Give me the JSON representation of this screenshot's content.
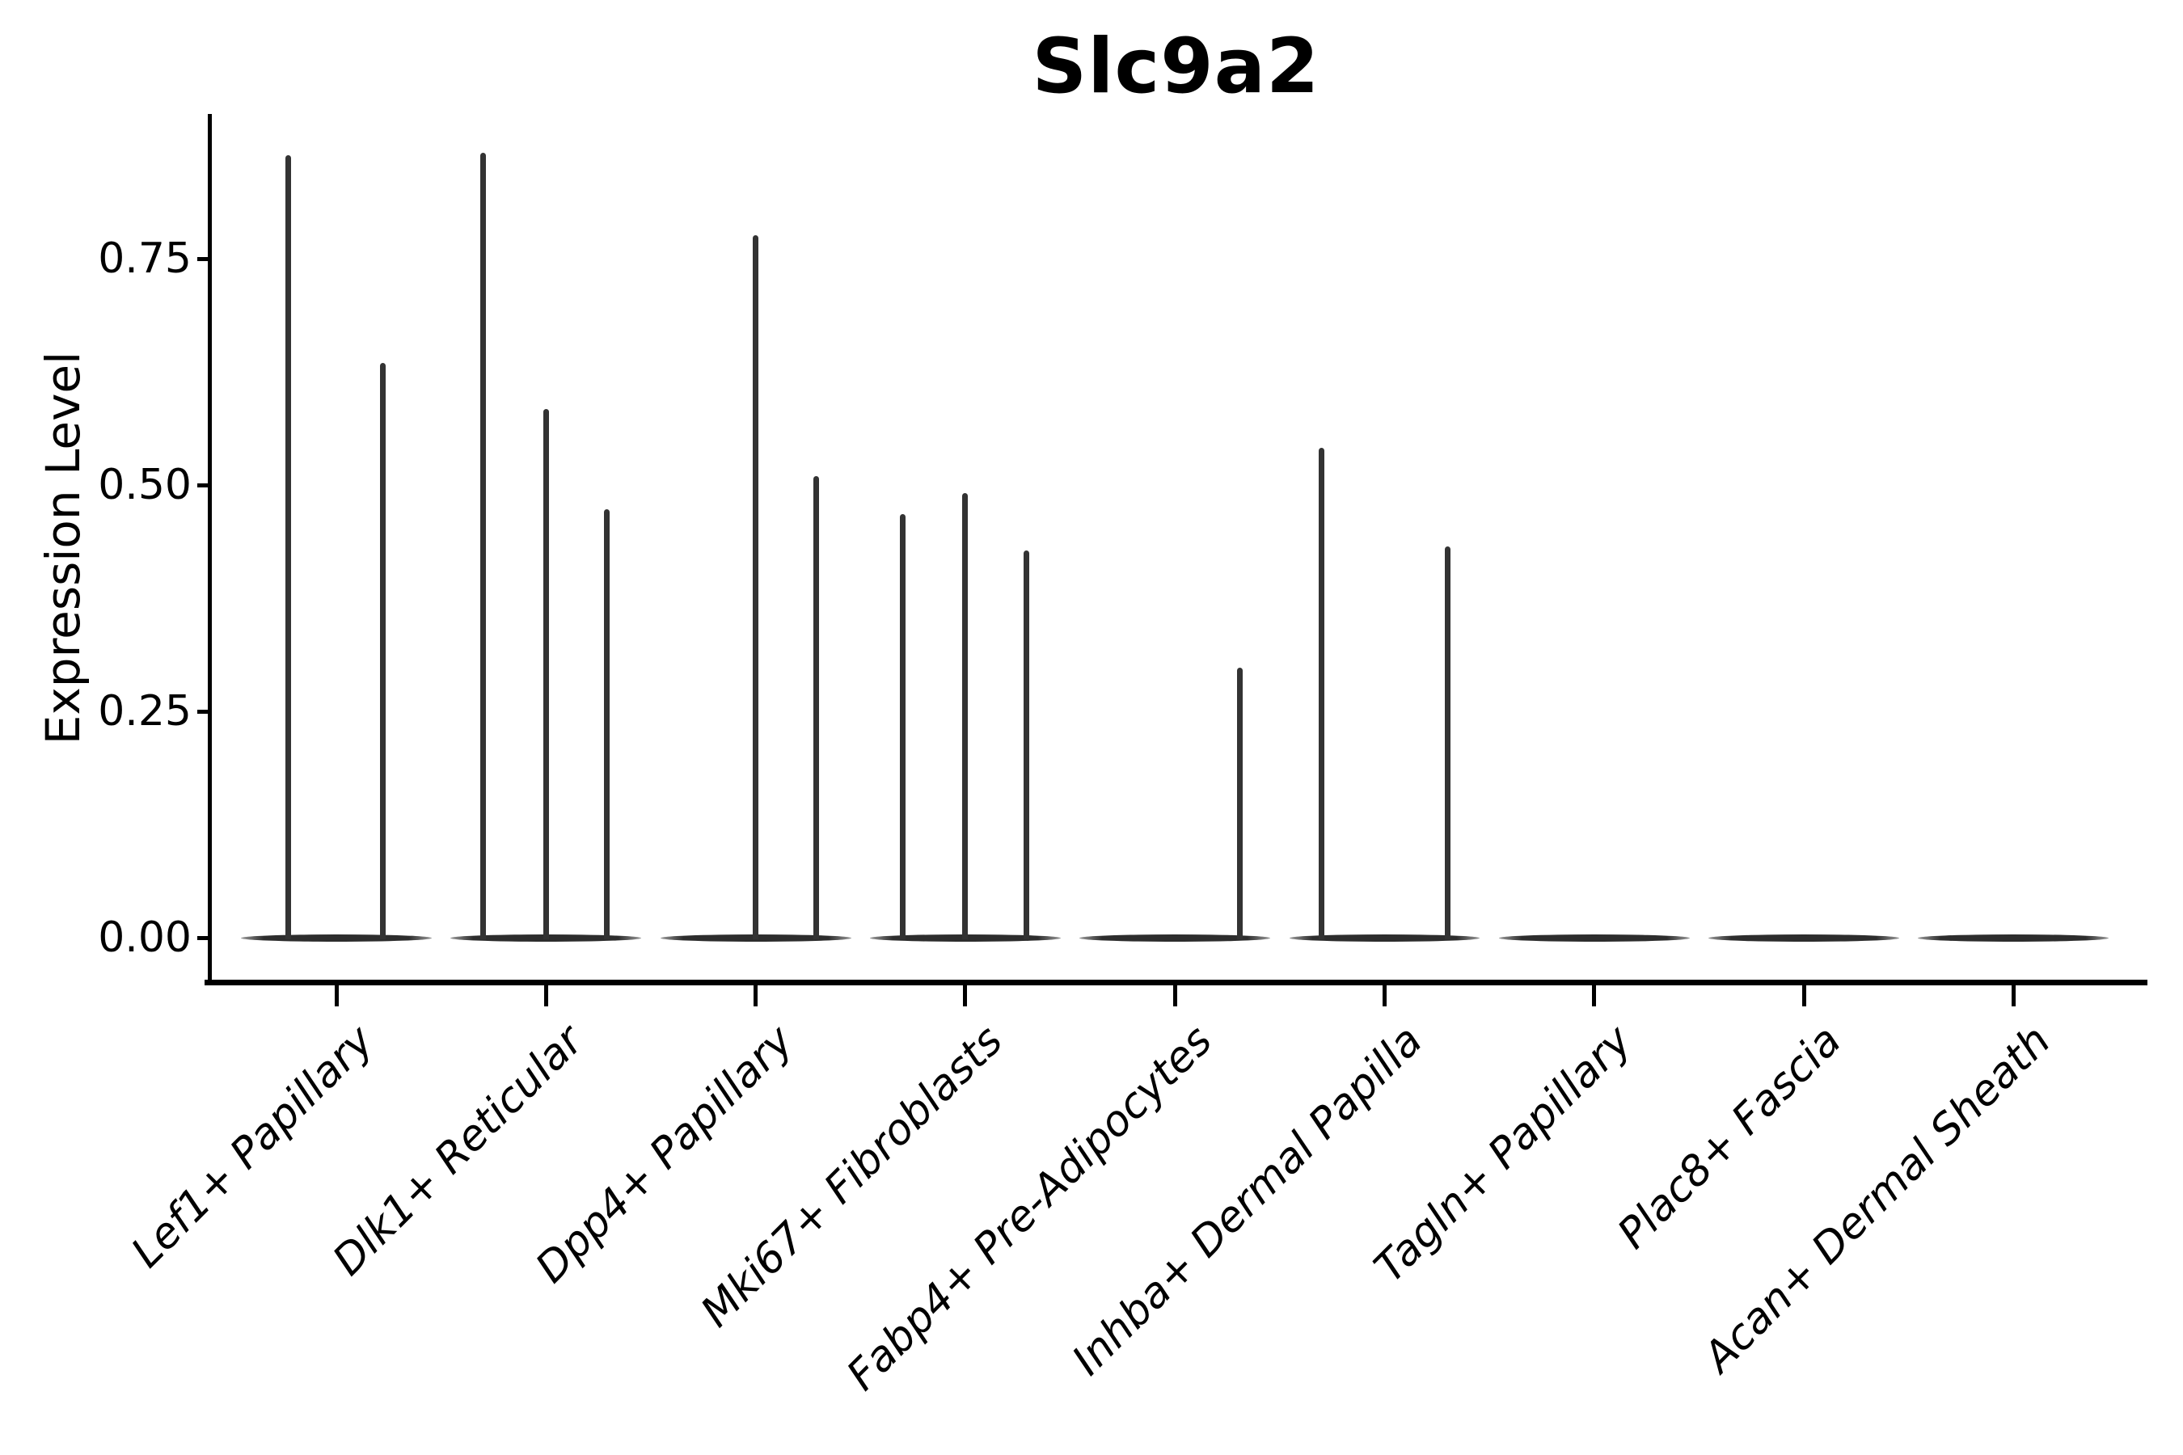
{
  "title": "Slc9a2",
  "axis": {
    "ylabel": "Expression Level",
    "ytick_labels": [
      "0.00",
      "0.25",
      "0.50",
      "0.75"
    ]
  },
  "chart_data": {
    "type": "violin",
    "title": "Slc9a2",
    "xlabel": "",
    "ylabel": "Expression Level",
    "ylim": [
      -0.05,
      0.91
    ],
    "yticks": [
      0.0,
      0.25,
      0.5,
      0.75
    ],
    "grid": false,
    "legend": "none",
    "violin_color": "#333333",
    "categories": [
      "Lef1+ Papillary",
      "Dlk1+ Reticular",
      "Dpp4+ Papillary",
      "Mki67+ Fibroblasts",
      "Fabp4+ Pre-Adipocytes",
      "Inhba+ Dermal Papilla",
      "Tagln+ Papillary",
      "Plac8+ Fascia",
      "Acan+ Dermal Sheath"
    ],
    "series": [
      {
        "name": "Lef1+ Papillary",
        "base_width_frac": 0.91,
        "spikes": [
          {
            "offset": -0.23,
            "value": 0.864
          },
          {
            "offset": 0.22,
            "value": 0.635
          }
        ]
      },
      {
        "name": "Dlk1+ Reticular",
        "base_width_frac": 0.91,
        "spikes": [
          {
            "offset": -0.3,
            "value": 0.867
          },
          {
            "offset": 0.0,
            "value": 0.584
          },
          {
            "offset": 0.29,
            "value": 0.473
          }
        ]
      },
      {
        "name": "Dpp4+ Papillary",
        "base_width_frac": 0.91,
        "spikes": [
          {
            "offset": 0.0,
            "value": 0.776
          },
          {
            "offset": 0.29,
            "value": 0.51
          }
        ]
      },
      {
        "name": "Mki67+ Fibroblasts",
        "base_width_frac": 0.91,
        "spikes": [
          {
            "offset": -0.3,
            "value": 0.468
          },
          {
            "offset": 0.0,
            "value": 0.491
          },
          {
            "offset": 0.29,
            "value": 0.428
          }
        ]
      },
      {
        "name": "Fabp4+ Pre-Adipocytes",
        "base_width_frac": 0.91,
        "spikes": [
          {
            "offset": 0.31,
            "value": 0.298
          }
        ]
      },
      {
        "name": "Inhba+ Dermal Papilla",
        "base_width_frac": 0.91,
        "spikes": [
          {
            "offset": -0.3,
            "value": 0.541
          },
          {
            "offset": 0.3,
            "value": 0.432
          }
        ]
      },
      {
        "name": "Tagln+ Papillary",
        "base_width_frac": 0.91,
        "spikes": []
      },
      {
        "name": "Plac8+ Fascia",
        "base_width_frac": 0.91,
        "spikes": []
      },
      {
        "name": "Acan+ Dermal Sheath",
        "base_width_frac": 0.91,
        "spikes": []
      }
    ]
  }
}
